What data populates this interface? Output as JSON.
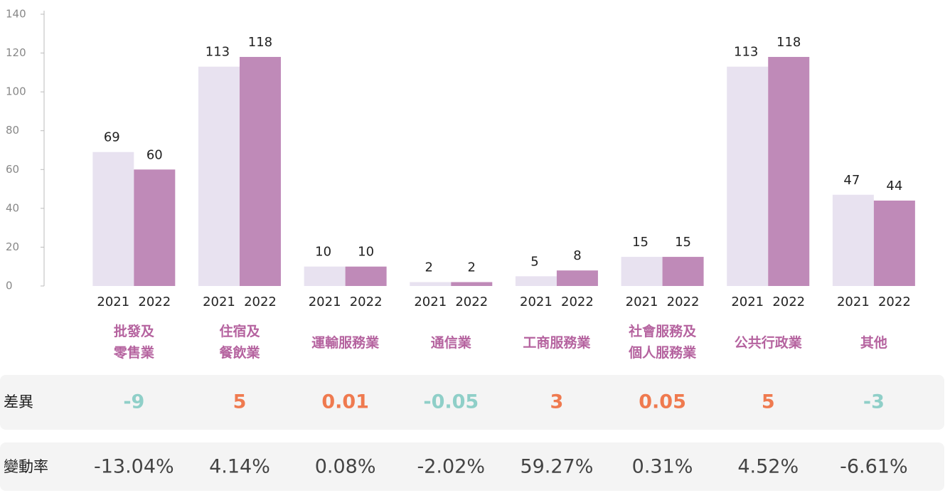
{
  "chart_data": {
    "type": "bar",
    "categories": [
      [
        "批發及",
        "零售業"
      ],
      [
        "住宿及",
        "餐飲業"
      ],
      [
        "運輸服務業"
      ],
      [
        "通信業"
      ],
      [
        "工商服務業"
      ],
      [
        "社會服務及",
        "個人服務業"
      ],
      [
        "公共行政業"
      ],
      [
        "其他"
      ]
    ],
    "series": [
      {
        "name": "2021",
        "color": "#e8e2f0",
        "values": [
          69,
          113,
          10,
          2,
          5,
          15,
          113,
          47
        ]
      },
      {
        "name": "2022",
        "color": "#bf8ab8",
        "values": [
          60,
          118,
          10,
          2,
          8,
          15,
          118,
          44
        ]
      }
    ],
    "category_color": "#b5639f",
    "ylim": [
      0,
      140
    ],
    "yticks": [
      0,
      20,
      40,
      60,
      80,
      100,
      120,
      140
    ]
  },
  "table": {
    "positive_color": "#ef7a4f",
    "negative_color": "#8fcfc8",
    "rows": [
      {
        "label": "差異",
        "values": [
          -9,
          5,
          0.01,
          -0.05,
          3,
          0.05,
          5,
          -3
        ]
      },
      {
        "label": "變動率",
        "values": [
          "-13.04%",
          "4.14%",
          "0.08%",
          "-2.02%",
          "59.27%",
          "0.31%",
          "4.52%",
          "-6.61%"
        ]
      }
    ]
  }
}
